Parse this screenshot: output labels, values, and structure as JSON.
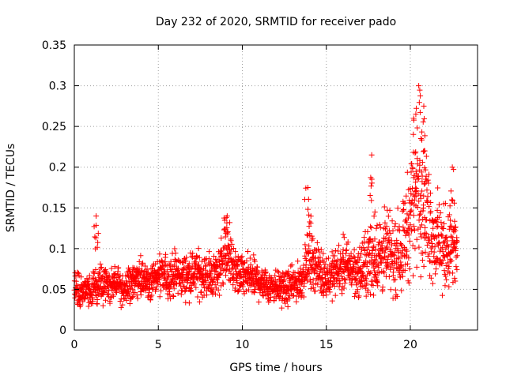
{
  "chart_data": {
    "type": "scatter",
    "title": "Day 232 of 2020, SRMTID for receiver pado",
    "xlabel": "GPS time / hours",
    "ylabel": "SRMTID / TECUs",
    "xlim": [
      0,
      24
    ],
    "ylim": [
      0,
      0.35
    ],
    "x_ticks": [
      0,
      5,
      10,
      15,
      20
    ],
    "x_tick_labels": [
      "0",
      "5",
      "10",
      "15",
      "20"
    ],
    "y_ticks": [
      0,
      0.05,
      0.1,
      0.15,
      0.2,
      0.25,
      0.3,
      0.35
    ],
    "y_tick_labels": [
      "0",
      "0.05",
      "0.1",
      "0.15",
      "0.2",
      "0.25",
      "0.3",
      "0.35"
    ],
    "grid": true,
    "marker": "+",
    "marker_color": "#ff0000",
    "series": [
      {
        "name": "SRMTID",
        "profile": [
          [
            0.0,
            0.055
          ],
          [
            0.5,
            0.045
          ],
          [
            1.0,
            0.05
          ],
          [
            1.5,
            0.055
          ],
          [
            2.0,
            0.055
          ],
          [
            2.5,
            0.058
          ],
          [
            3.0,
            0.05
          ],
          [
            3.5,
            0.06
          ],
          [
            4.0,
            0.062
          ],
          [
            4.5,
            0.06
          ],
          [
            5.0,
            0.065
          ],
          [
            5.5,
            0.065
          ],
          [
            6.0,
            0.068
          ],
          [
            6.5,
            0.065
          ],
          [
            7.0,
            0.07
          ],
          [
            7.5,
            0.068
          ],
          [
            8.0,
            0.065
          ],
          [
            8.5,
            0.07
          ],
          [
            9.0,
            0.1
          ],
          [
            9.3,
            0.085
          ],
          [
            9.6,
            0.07
          ],
          [
            10.0,
            0.065
          ],
          [
            10.5,
            0.065
          ],
          [
            11.0,
            0.06
          ],
          [
            11.5,
            0.055
          ],
          [
            12.0,
            0.055
          ],
          [
            12.5,
            0.05
          ],
          [
            13.0,
            0.055
          ],
          [
            13.5,
            0.06
          ],
          [
            13.8,
            0.08
          ],
          [
            14.0,
            0.09
          ],
          [
            14.5,
            0.075
          ],
          [
            15.0,
            0.065
          ],
          [
            15.5,
            0.07
          ],
          [
            16.0,
            0.08
          ],
          [
            16.5,
            0.075
          ],
          [
            17.0,
            0.07
          ],
          [
            17.5,
            0.085
          ],
          [
            18.0,
            0.09
          ],
          [
            18.5,
            0.095
          ],
          [
            19.0,
            0.09
          ],
          [
            19.5,
            0.1
          ],
          [
            20.0,
            0.14
          ],
          [
            20.3,
            0.17
          ],
          [
            20.6,
            0.18
          ],
          [
            21.0,
            0.14
          ],
          [
            21.5,
            0.11
          ],
          [
            22.0,
            0.1
          ],
          [
            22.5,
            0.1
          ],
          [
            22.8,
            0.095
          ]
        ],
        "spikes": [
          {
            "x": 1.3,
            "y": 0.14
          },
          {
            "x": 13.9,
            "y": 0.175
          },
          {
            "x": 17.7,
            "y": 0.215
          },
          {
            "x": 20.5,
            "y": 0.3
          },
          {
            "x": 20.8,
            "y": 0.275
          },
          {
            "x": 20.2,
            "y": 0.26
          },
          {
            "x": 9.1,
            "y": 0.14
          },
          {
            "x": 22.5,
            "y": 0.2
          }
        ]
      }
    ]
  }
}
